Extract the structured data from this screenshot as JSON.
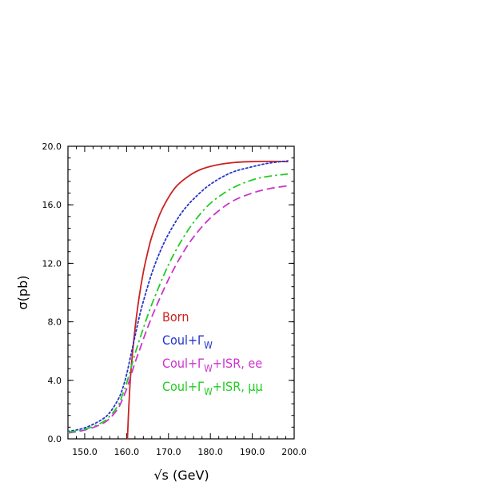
{
  "chart_data": {
    "type": "line",
    "xlabel": "√s (GeV)",
    "ylabel": "σ(pb)",
    "xlim": [
      146.0,
      200.0
    ],
    "ylim": [
      0.0,
      20.0
    ],
    "xticks": [
      150.0,
      160.0,
      170.0,
      180.0,
      190.0,
      200.0
    ],
    "xtick_labels": [
      "150.0",
      "160.0",
      "170.0",
      "180.0",
      "190.0",
      "200.0"
    ],
    "yticks": [
      0.0,
      4.0,
      8.0,
      12.0,
      16.0,
      20.0
    ],
    "ytick_labels": [
      "0.0",
      "4.0",
      "8.0",
      "12.0",
      "16.0",
      "20.0"
    ],
    "grid": false,
    "legend_position": "lower-right",
    "series": [
      {
        "name": "Born",
        "color": "#cc2222",
        "style": "solid",
        "x": [
          160.2,
          160.5,
          161,
          162,
          163,
          164,
          165,
          166,
          168,
          170,
          172,
          175,
          178,
          182,
          186,
          190,
          194,
          198.5
        ],
        "y": [
          0.0,
          2.0,
          4.5,
          7.5,
          9.7,
          11.4,
          12.7,
          13.8,
          15.4,
          16.5,
          17.3,
          18.0,
          18.45,
          18.75,
          18.9,
          18.95,
          18.97,
          18.95
        ]
      },
      {
        "name": "Coul+ΓW",
        "color": "#2233cc",
        "style": "dotted",
        "x": [
          146,
          150,
          154,
          156,
          158,
          159,
          160,
          161,
          162,
          163,
          164,
          166,
          168,
          170,
          173,
          176,
          180,
          185,
          190,
          194,
          198.5
        ],
        "y": [
          0.5,
          0.75,
          1.3,
          1.8,
          2.7,
          3.4,
          4.4,
          5.7,
          7.0,
          8.3,
          9.4,
          11.3,
          12.8,
          14.0,
          15.4,
          16.4,
          17.4,
          18.2,
          18.6,
          18.85,
          19.0
        ]
      },
      {
        "name": "Coul+ΓW+ISR, ee",
        "color": "#cc33cc",
        "style": "dashed",
        "x": [
          146,
          150,
          154,
          156,
          158,
          159,
          160,
          161,
          162,
          163,
          165,
          167,
          170,
          173,
          176,
          180,
          185,
          190,
          194,
          198.5
        ],
        "y": [
          0.4,
          0.6,
          1.0,
          1.4,
          2.1,
          2.7,
          3.4,
          4.3,
          5.2,
          6.0,
          7.6,
          9.0,
          10.9,
          12.5,
          13.8,
          15.1,
          16.2,
          16.8,
          17.1,
          17.3
        ]
      },
      {
        "name": "Coul+ΓW+ISR, μμ",
        "color": "#22cc22",
        "style": "dashdot",
        "x": [
          146,
          150,
          154,
          156,
          158,
          159,
          160,
          161,
          162,
          163,
          165,
          167,
          170,
          173,
          176,
          180,
          185,
          190,
          194,
          198.5
        ],
        "y": [
          0.45,
          0.65,
          1.1,
          1.55,
          2.3,
          3.0,
          3.8,
          4.8,
          5.8,
          6.7,
          8.4,
          9.9,
          11.9,
          13.5,
          14.8,
          16.1,
          17.1,
          17.7,
          17.95,
          18.1
        ]
      }
    ],
    "legend": [
      {
        "main": "Born",
        "sub": "",
        "tail": ""
      },
      {
        "main": "Coul+Γ",
        "sub": "W",
        "tail": ""
      },
      {
        "main": "Coul+Γ",
        "sub": "W",
        "tail": "+ISR, ee"
      },
      {
        "main": "Coul+Γ",
        "sub": "W",
        "tail": "+ISR, μμ"
      }
    ]
  }
}
